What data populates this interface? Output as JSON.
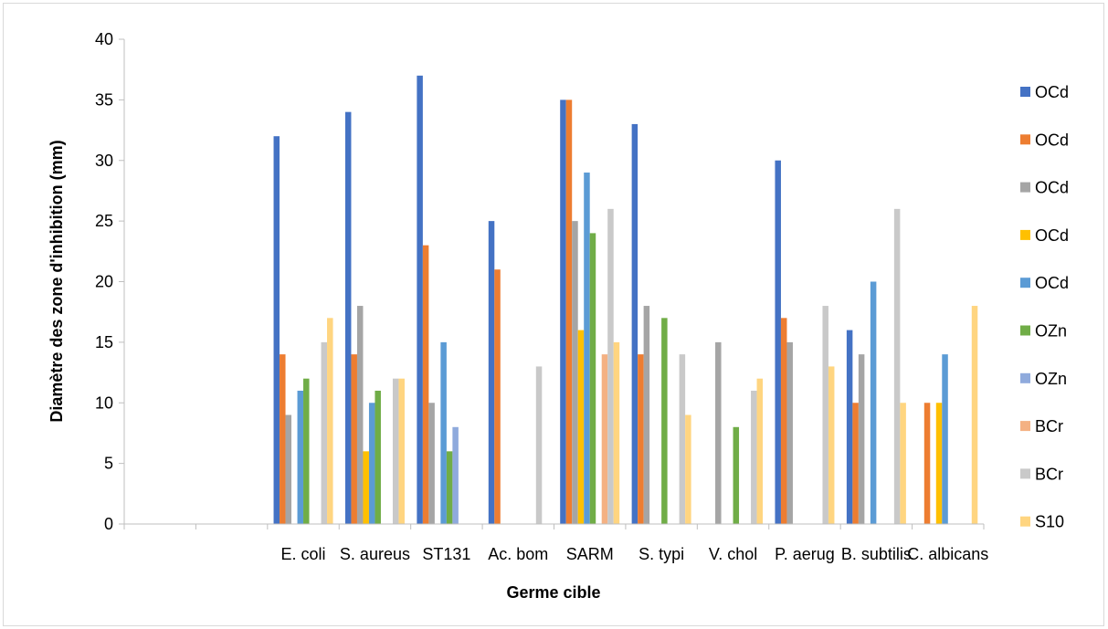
{
  "chart_data": {
    "type": "bar",
    "title": "",
    "xlabel": "Germe cible",
    "ylabel": "Diamètre des zone d'inhibition (mm)",
    "ylim": [
      0,
      40
    ],
    "yticks": [
      0,
      5,
      10,
      15,
      20,
      25,
      30,
      35,
      40
    ],
    "grid": false,
    "legend_position": "right",
    "categories": [
      "",
      "",
      "E. coli",
      "S. aureus",
      "ST131",
      "Ac. bom",
      "SARM",
      "S. typi",
      "V. chol",
      "P. aerug",
      "B. subtilis",
      "C. albicans"
    ],
    "series": [
      {
        "name": "OCd",
        "color": "#4472C4",
        "values": [
          null,
          null,
          32,
          34,
          37,
          25,
          35,
          33,
          null,
          30,
          16,
          null
        ]
      },
      {
        "name": "OCd",
        "color": "#ED7D31",
        "values": [
          null,
          null,
          14,
          14,
          23,
          21,
          35,
          14,
          null,
          17,
          10,
          10
        ]
      },
      {
        "name": "OCd",
        "color": "#A5A5A5",
        "values": [
          null,
          null,
          9,
          18,
          10,
          null,
          25,
          18,
          15,
          15,
          14,
          null
        ]
      },
      {
        "name": "OCd",
        "color": "#FFC000",
        "values": [
          null,
          null,
          null,
          6,
          null,
          null,
          16,
          null,
          null,
          null,
          null,
          10
        ]
      },
      {
        "name": "OCd",
        "color": "#5B9BD5",
        "values": [
          null,
          null,
          11,
          10,
          15,
          null,
          29,
          null,
          null,
          null,
          20,
          14
        ]
      },
      {
        "name": "OZn",
        "color": "#70AD47",
        "values": [
          null,
          null,
          12,
          11,
          6,
          null,
          24,
          17,
          8,
          null,
          null,
          null
        ]
      },
      {
        "name": "OZn",
        "color": "#8FAADC",
        "values": [
          null,
          null,
          null,
          null,
          8,
          null,
          null,
          null,
          null,
          null,
          null,
          null
        ]
      },
      {
        "name": "BCr",
        "color": "#F4B183",
        "values": [
          null,
          null,
          null,
          null,
          null,
          null,
          14,
          null,
          null,
          null,
          null,
          null
        ]
      },
      {
        "name": "BCr",
        "color": "#C9C9C9",
        "values": [
          null,
          null,
          15,
          12,
          null,
          13,
          26,
          14,
          11,
          18,
          26,
          null
        ]
      },
      {
        "name": "S10",
        "color": "#FFD580",
        "values": [
          null,
          null,
          17,
          12,
          null,
          null,
          15,
          9,
          12,
          13,
          10,
          18
        ]
      }
    ]
  }
}
